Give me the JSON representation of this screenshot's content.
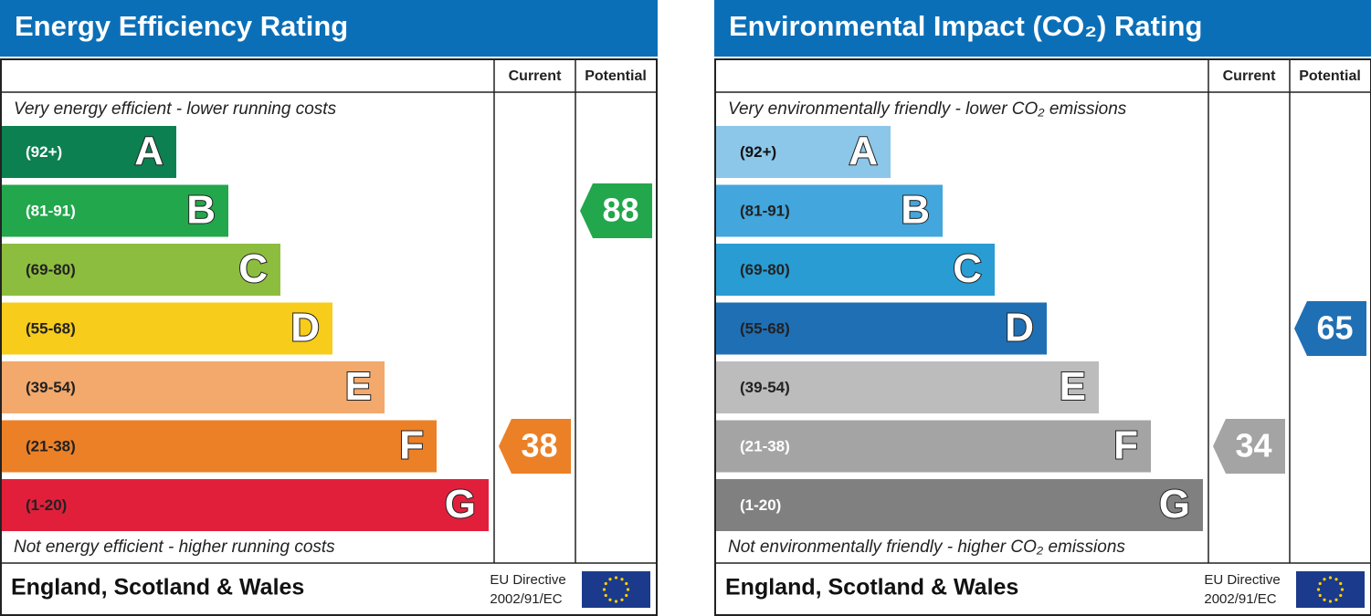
{
  "chart_data": [
    {
      "type": "rating",
      "title": "Energy Efficiency Rating",
      "columns": [
        "Current",
        "Potential"
      ],
      "top_label": "Very energy efficient - lower running costs",
      "bottom_label": "Not energy efficient - higher running costs",
      "categories": [
        "A",
        "B",
        "C",
        "D",
        "E",
        "F",
        "G"
      ],
      "ranges": [
        "(92+)",
        "(81-91)",
        "(69-80)",
        "(55-68)",
        "(39-54)",
        "(21-38)",
        "(1-20)"
      ],
      "colors": [
        "#0c8050",
        "#22a74c",
        "#8dbd3f",
        "#f7cc1a",
        "#f2a96b",
        "#ec8026",
        "#e21f3b"
      ],
      "range_text_colors": [
        "#ffffff",
        "#ffffff",
        "#222222",
        "#222222",
        "#222222",
        "#222222",
        "#222222"
      ],
      "current": 38,
      "potential": 88,
      "footer": "England, Scotland & Wales",
      "directive": [
        "EU Directive",
        "2002/91/EC"
      ]
    },
    {
      "type": "rating",
      "title": "Environmental Impact (CO₂) Rating",
      "columns": [
        "Current",
        "Potential"
      ],
      "top_label": "Very environmentally friendly - lower CO₂ emissions",
      "bottom_label": "Not environmentally friendly - higher CO₂ emissions",
      "categories": [
        "A",
        "B",
        "C",
        "D",
        "E",
        "F",
        "G"
      ],
      "ranges": [
        "(92+)",
        "(81-91)",
        "(69-80)",
        "(55-68)",
        "(39-54)",
        "(21-38)",
        "(1-20)"
      ],
      "colors": [
        "#8cc6e8",
        "#43a6dc",
        "#299cd4",
        "#1f6fb5",
        "#bcbcbc",
        "#a4a4a4",
        "#808080"
      ],
      "range_text_colors": [
        "#111111",
        "#222222",
        "#222222",
        "#222222",
        "#222222",
        "#ffffff",
        "#ffffff"
      ],
      "current": 34,
      "potential": 65,
      "footer": "England, Scotland & Wales",
      "directive": [
        "EU Directive",
        "2002/91/EC"
      ]
    }
  ]
}
